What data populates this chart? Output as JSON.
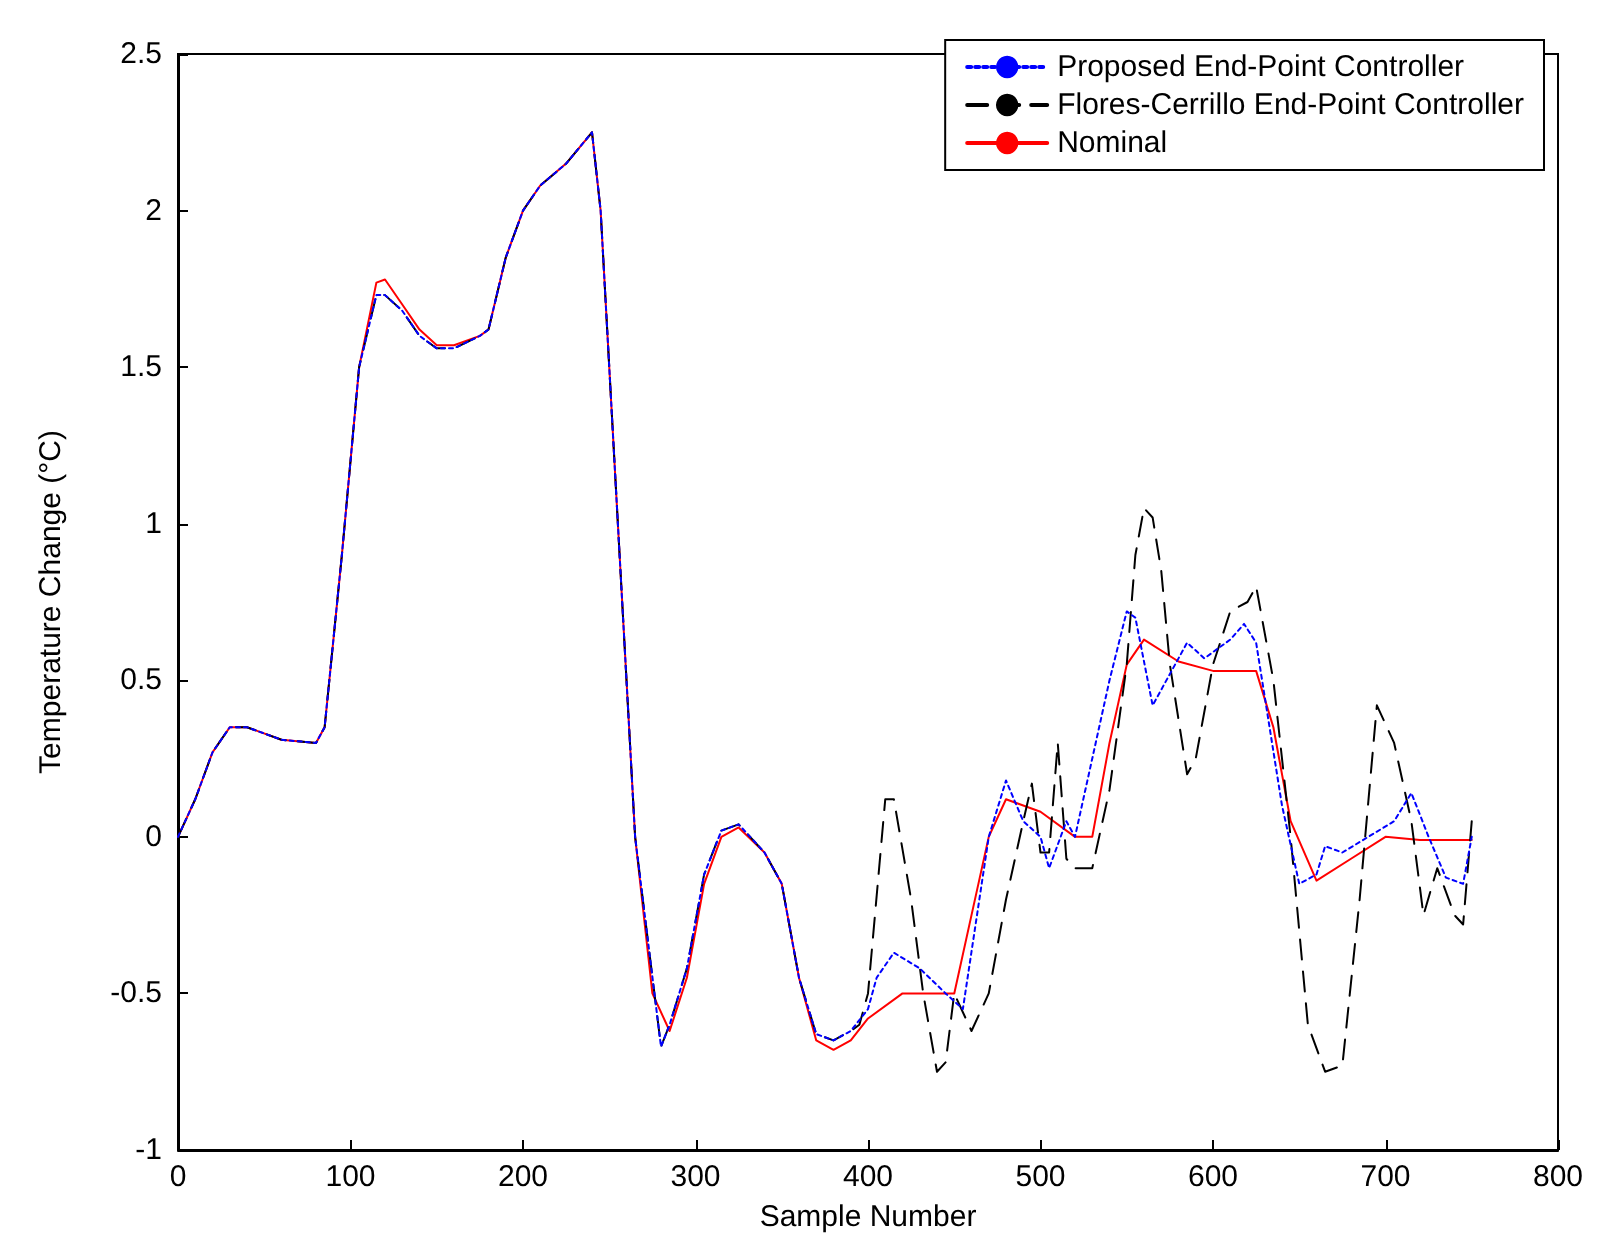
{
  "chart_data": {
    "type": "line",
    "xlabel": "Sample Number",
    "ylabel": "Temperature Change (°C)",
    "xlim": [
      0,
      800
    ],
    "xticks": [
      0,
      100,
      200,
      300,
      400,
      500,
      600,
      700,
      800
    ],
    "ylim": [
      -1,
      2.5
    ],
    "yticks": [
      -1,
      -0.5,
      0,
      0.5,
      1,
      1.5,
      2,
      2.5
    ],
    "grid": false,
    "legend": "top right",
    "marker": "none",
    "series": [
      {
        "name": "Proposed End-Point Controller",
        "color": "#0000ff",
        "line_style": "dotted",
        "x": [
          0,
          10,
          20,
          30,
          40,
          60,
          80,
          85,
          95,
          105,
          115,
          120,
          130,
          140,
          150,
          160,
          175,
          180,
          190,
          200,
          210,
          225,
          240,
          245,
          255,
          265,
          280,
          285,
          295,
          305,
          315,
          325,
          340,
          350,
          360,
          370,
          380,
          390,
          400,
          405,
          415,
          430,
          445,
          455,
          470,
          480,
          490,
          500,
          505,
          515,
          520,
          540,
          550,
          555,
          565,
          575,
          585,
          595,
          610,
          618,
          625,
          640,
          650,
          660,
          665,
          675,
          690,
          705,
          715,
          725,
          735,
          745,
          750
        ],
        "values": [
          0,
          0.12,
          0.27,
          0.35,
          0.35,
          0.31,
          0.3,
          0.35,
          0.9,
          1.5,
          1.73,
          1.73,
          1.68,
          1.6,
          1.56,
          1.56,
          1.6,
          1.62,
          1.85,
          2.0,
          2.08,
          2.15,
          2.25,
          2.0,
          1.0,
          0.0,
          -0.67,
          -0.6,
          -0.42,
          -0.12,
          0.02,
          0.04,
          -0.05,
          -0.15,
          -0.45,
          -0.63,
          -0.65,
          -0.62,
          -0.55,
          -0.45,
          -0.37,
          -0.42,
          -0.5,
          -0.55,
          0.0,
          0.18,
          0.05,
          0.0,
          -0.1,
          0.05,
          0.0,
          0.5,
          0.72,
          0.7,
          0.42,
          0.52,
          0.62,
          0.57,
          0.63,
          0.68,
          0.62,
          0.1,
          -0.15,
          -0.12,
          -0.03,
          -0.05,
          0.0,
          0.05,
          0.14,
          0.0,
          -0.13,
          -0.15,
          0.0
        ]
      },
      {
        "name": "Flores-Cerrillo End-Point Controller",
        "color": "#000000",
        "line_style": "dashed",
        "x": [
          0,
          10,
          20,
          30,
          40,
          60,
          80,
          85,
          95,
          105,
          115,
          120,
          130,
          140,
          150,
          160,
          175,
          180,
          190,
          200,
          210,
          225,
          240,
          245,
          255,
          265,
          280,
          285,
          295,
          305,
          315,
          325,
          340,
          350,
          360,
          370,
          380,
          390,
          395,
          400,
          410,
          415,
          425,
          432,
          440,
          445,
          450,
          460,
          470,
          480,
          490,
          495,
          500,
          505,
          510,
          515,
          520,
          530,
          540,
          550,
          555,
          560,
          565,
          570,
          575,
          585,
          590,
          600,
          610,
          620,
          625,
          635,
          645,
          655,
          665,
          675,
          685,
          695,
          705,
          715,
          722,
          730,
          740,
          745,
          750
        ],
        "values": [
          0,
          0.12,
          0.27,
          0.35,
          0.35,
          0.31,
          0.3,
          0.35,
          0.9,
          1.5,
          1.73,
          1.73,
          1.68,
          1.6,
          1.56,
          1.56,
          1.6,
          1.62,
          1.85,
          2.0,
          2.08,
          2.15,
          2.25,
          2.0,
          1.0,
          0.0,
          -0.67,
          -0.6,
          -0.42,
          -0.12,
          0.02,
          0.04,
          -0.05,
          -0.15,
          -0.45,
          -0.63,
          -0.65,
          -0.62,
          -0.6,
          -0.5,
          0.12,
          0.12,
          -0.2,
          -0.5,
          -0.75,
          -0.72,
          -0.5,
          -0.62,
          -0.5,
          -0.2,
          0.05,
          0.17,
          -0.05,
          -0.05,
          0.3,
          -0.07,
          -0.1,
          -0.1,
          0.15,
          0.55,
          0.9,
          1.05,
          1.02,
          0.85,
          0.55,
          0.2,
          0.25,
          0.55,
          0.72,
          0.75,
          0.8,
          0.5,
          0.0,
          -0.6,
          -0.75,
          -0.73,
          -0.2,
          0.42,
          0.3,
          0.05,
          -0.25,
          -0.1,
          -0.25,
          -0.28,
          0.05
        ]
      },
      {
        "name": "Nominal",
        "color": "#ff0000",
        "line_style": "solid",
        "x": [
          0,
          10,
          20,
          30,
          40,
          60,
          80,
          85,
          95,
          105,
          115,
          120,
          130,
          140,
          150,
          160,
          175,
          180,
          190,
          200,
          210,
          225,
          240,
          245,
          255,
          265,
          275,
          285,
          295,
          305,
          315,
          325,
          340,
          350,
          360,
          370,
          380,
          390,
          400,
          420,
          440,
          450,
          460,
          470,
          480,
          500,
          520,
          530,
          540,
          550,
          560,
          580,
          600,
          625,
          635,
          645,
          660,
          680,
          700,
          720,
          750
        ],
        "values": [
          0,
          0.12,
          0.27,
          0.35,
          0.35,
          0.31,
          0.3,
          0.35,
          0.9,
          1.5,
          1.77,
          1.78,
          1.7,
          1.62,
          1.57,
          1.57,
          1.6,
          1.62,
          1.85,
          2.0,
          2.08,
          2.15,
          2.25,
          2.0,
          1.0,
          0.0,
          -0.5,
          -0.62,
          -0.45,
          -0.15,
          0.0,
          0.03,
          -0.05,
          -0.15,
          -0.45,
          -0.65,
          -0.68,
          -0.65,
          -0.58,
          -0.5,
          -0.5,
          -0.5,
          -0.25,
          0.0,
          0.12,
          0.08,
          0.0,
          0.0,
          0.3,
          0.55,
          0.63,
          0.56,
          0.53,
          0.53,
          0.35,
          0.05,
          -0.14,
          -0.07,
          0.0,
          -0.01,
          -0.01
        ]
      }
    ]
  }
}
